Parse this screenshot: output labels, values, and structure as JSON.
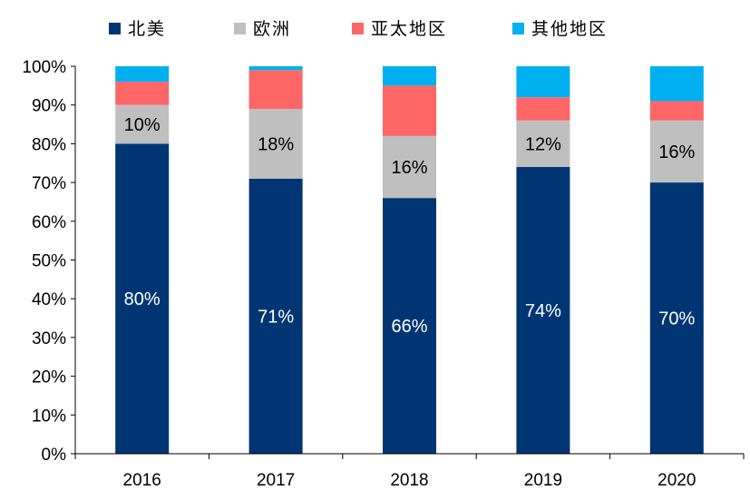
{
  "chart_data": {
    "type": "bar",
    "stacked": true,
    "categories": [
      "2016",
      "2017",
      "2018",
      "2019",
      "2020"
    ],
    "series": [
      {
        "name": "北美",
        "color": "#003574",
        "values": [
          80,
          71,
          66,
          74,
          70
        ]
      },
      {
        "name": "欧洲",
        "color": "#BFBFBF",
        "values": [
          10,
          18,
          16,
          12,
          16
        ]
      },
      {
        "name": "亚太地区",
        "color": "#FF6666",
        "values": [
          6,
          10,
          13,
          6,
          5
        ]
      },
      {
        "name": "其他地区",
        "color": "#00B0F0",
        "values": [
          4,
          1,
          5,
          8,
          9
        ]
      }
    ],
    "data_labels": {
      "北美": [
        "80%",
        "71%",
        "66%",
        "74%",
        "70%"
      ],
      "欧洲": [
        "10%",
        "18%",
        "16%",
        "12%",
        "16%"
      ]
    },
    "y_ticks": [
      "0%",
      "10%",
      "20%",
      "30%",
      "40%",
      "50%",
      "60%",
      "70%",
      "80%",
      "90%",
      "100%"
    ],
    "ylim": [
      0,
      100
    ],
    "grid": false,
    "legend_position": "top",
    "title": "",
    "xlabel": "",
    "ylabel": ""
  }
}
